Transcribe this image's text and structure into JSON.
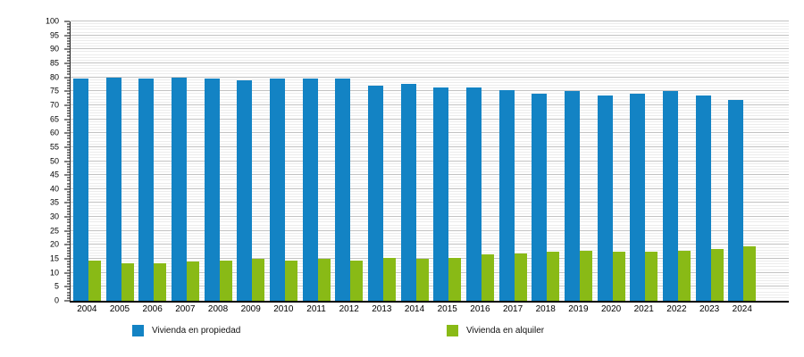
{
  "chart_data": {
    "type": "bar",
    "title": "",
    "xlabel": "",
    "ylabel": "",
    "categories": [
      "2004",
      "2005",
      "2006",
      "2007",
      "2008",
      "2009",
      "2010",
      "2011",
      "2012",
      "2013",
      "2014",
      "2015",
      "2016",
      "2017",
      "2018",
      "2019",
      "2020",
      "2021",
      "2022",
      "2023",
      "2024"
    ],
    "series": [
      {
        "name": "Vivienda en propiedad",
        "color": "#1383c4",
        "values": [
          79.5,
          80,
          79.5,
          80,
          79.5,
          79,
          79.5,
          79.5,
          79.5,
          77,
          77.5,
          76.5,
          76.5,
          75.5,
          74,
          75,
          73.5,
          74,
          75,
          73.5,
          72
        ]
      },
      {
        "name": "Vivienda en alquiler",
        "color": "#89ba16",
        "values": [
          14.5,
          13.5,
          13.5,
          14,
          14.5,
          15,
          14.5,
          15,
          14.5,
          15.5,
          15,
          15.5,
          16.5,
          17,
          17.5,
          18,
          17.5,
          17.5,
          18,
          18.5,
          19.5
        ]
      }
    ],
    "ylim": [
      0,
      100
    ],
    "yticks": [
      0,
      5,
      10,
      15,
      20,
      25,
      30,
      35,
      40,
      45,
      50,
      55,
      60,
      65,
      70,
      75,
      80,
      85,
      90,
      95,
      100
    ],
    "minor_grid_step": 1,
    "grid": "horizontal",
    "legend_position": "bottom"
  }
}
